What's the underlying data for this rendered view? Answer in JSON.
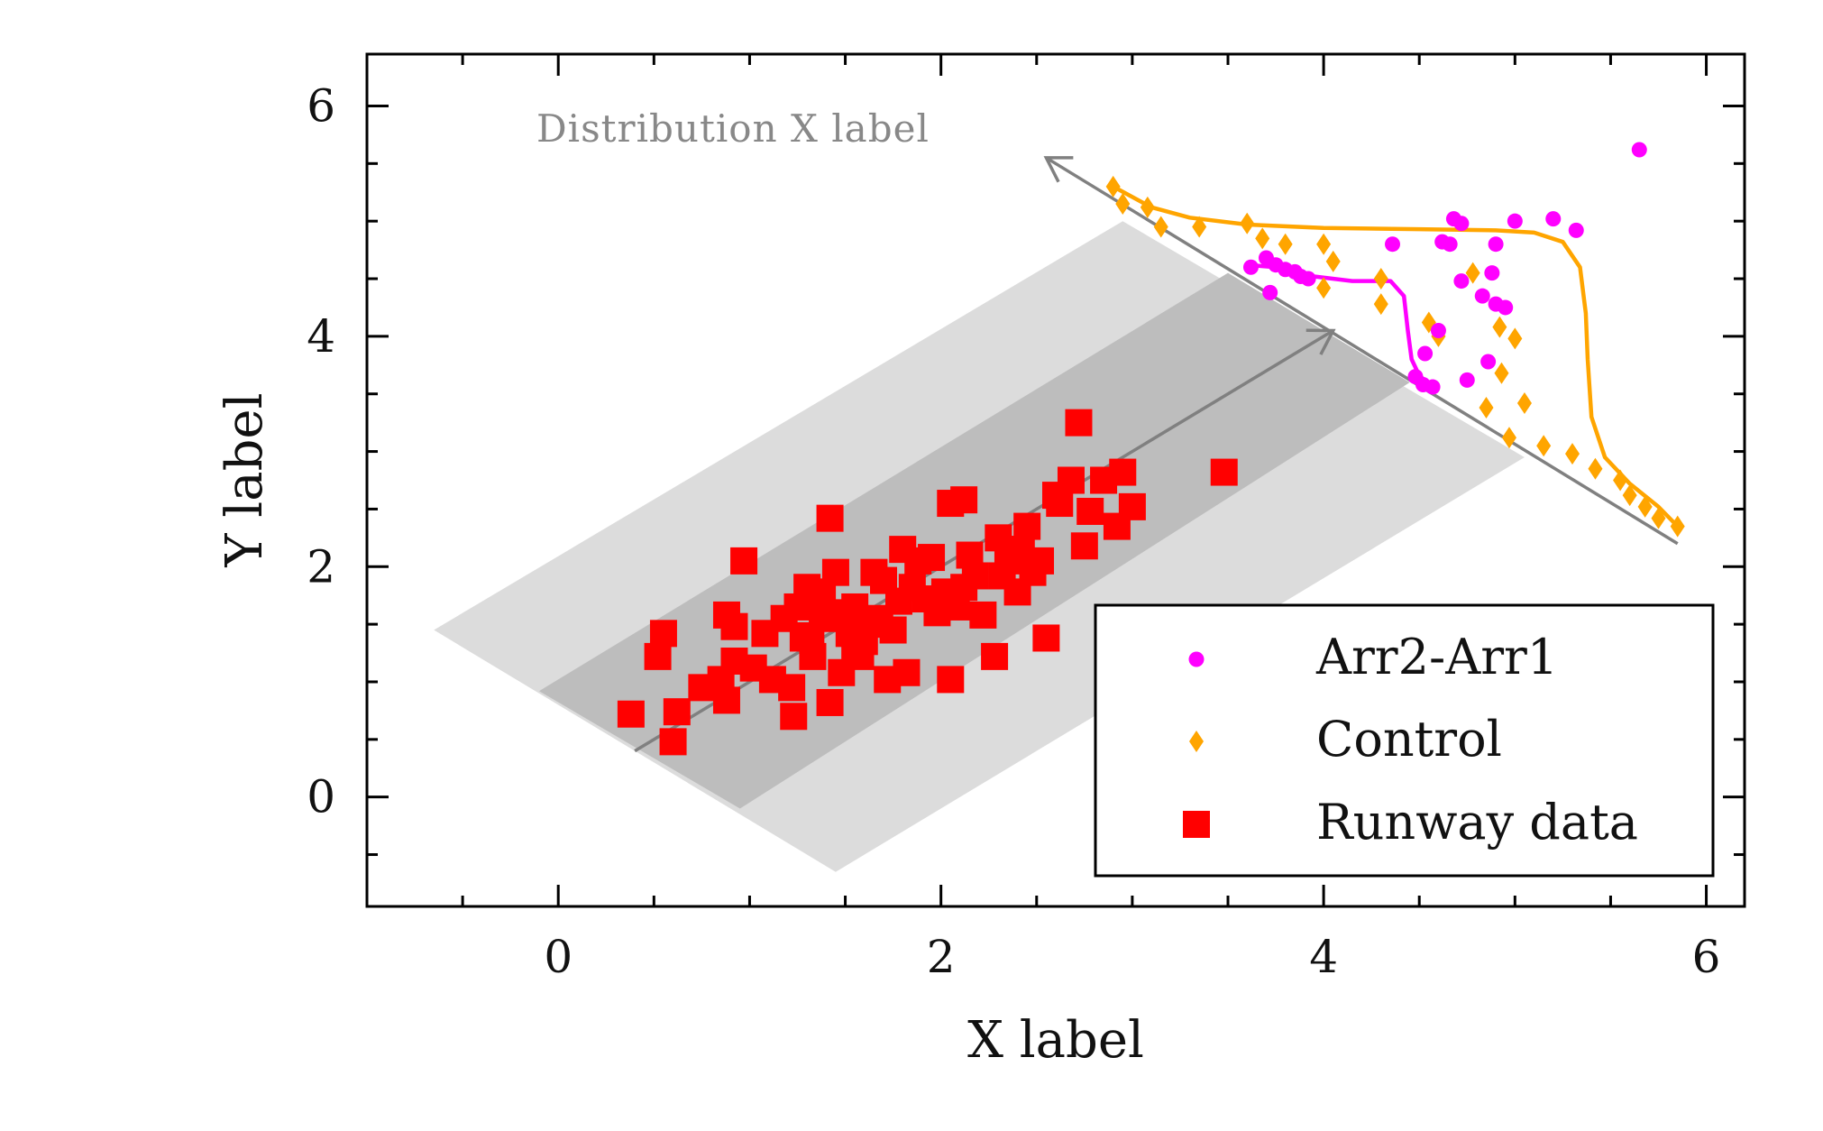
{
  "chart_data": {
    "type": "scatter",
    "title": "",
    "xlabel": "X label",
    "ylabel": "Y label",
    "xlim": [
      -1.0,
      6.2
    ],
    "ylim": [
      -0.95,
      6.45
    ],
    "xticks": [
      0,
      2,
      4,
      6
    ],
    "yticks": [
      0,
      2,
      4,
      6
    ],
    "grid": false,
    "legend_placement": "lower-right",
    "annotation": "Distribution X label",
    "colors": {
      "arr2_arr1": "#ff00ff",
      "control": "#ffa500",
      "runway": "#ff0000",
      "band_outer": "#dcdcdc",
      "band_inner": "#bdbdbd",
      "axis_arrow": "#808080"
    },
    "bands": {
      "outer": [
        [
          -0.65,
          1.45
        ],
        [
          2.95,
          5.0
        ],
        [
          5.05,
          2.95
        ],
        [
          1.45,
          -0.65
        ]
      ],
      "inner": [
        [
          -0.1,
          0.92
        ],
        [
          3.5,
          4.55
        ],
        [
          4.45,
          3.6
        ],
        [
          0.95,
          -0.1
        ]
      ]
    },
    "main_axis_arrow": {
      "from": [
        0.4,
        0.4
      ],
      "to": [
        4.05,
        4.05
      ]
    },
    "dist_axis_arrow": {
      "from": [
        5.85,
        2.2
      ],
      "to": [
        2.55,
        5.55
      ]
    },
    "series": [
      {
        "name": "Arr2-Arr1",
        "marker": "circle",
        "color": "#ff00ff",
        "points": [
          [
            5.65,
            5.62
          ],
          [
            4.68,
            5.02
          ],
          [
            4.72,
            4.98
          ],
          [
            5.0,
            5.0
          ],
          [
            5.2,
            5.02
          ],
          [
            5.32,
            4.92
          ],
          [
            4.36,
            4.8
          ],
          [
            4.62,
            4.82
          ],
          [
            4.66,
            4.8
          ],
          [
            4.9,
            4.8
          ],
          [
            3.62,
            4.6
          ],
          [
            3.7,
            4.68
          ],
          [
            3.75,
            4.62
          ],
          [
            3.8,
            4.58
          ],
          [
            3.85,
            4.56
          ],
          [
            3.88,
            4.52
          ],
          [
            3.92,
            4.5
          ],
          [
            3.72,
            4.38
          ],
          [
            4.88,
            4.55
          ],
          [
            4.72,
            4.48
          ],
          [
            4.83,
            4.35
          ],
          [
            4.9,
            4.28
          ],
          [
            4.95,
            4.25
          ],
          [
            4.6,
            4.05
          ],
          [
            4.53,
            3.85
          ],
          [
            4.86,
            3.78
          ],
          [
            4.48,
            3.65
          ],
          [
            4.52,
            3.58
          ],
          [
            4.57,
            3.56
          ],
          [
            4.75,
            3.62
          ]
        ]
      },
      {
        "name": "Control",
        "marker": "diamond",
        "color": "#ffa500",
        "points": [
          [
            2.9,
            5.3
          ],
          [
            2.95,
            5.15
          ],
          [
            3.08,
            5.12
          ],
          [
            3.15,
            4.95
          ],
          [
            3.35,
            4.95
          ],
          [
            3.6,
            4.98
          ],
          [
            3.8,
            4.8
          ],
          [
            4.0,
            4.8
          ],
          [
            3.68,
            4.85
          ],
          [
            4.05,
            4.65
          ],
          [
            4.0,
            4.42
          ],
          [
            4.3,
            4.5
          ],
          [
            4.3,
            4.28
          ],
          [
            4.55,
            4.12
          ],
          [
            4.6,
            4.0
          ],
          [
            4.78,
            4.55
          ],
          [
            4.92,
            4.08
          ],
          [
            5.0,
            3.98
          ],
          [
            4.93,
            3.68
          ],
          [
            4.85,
            3.38
          ],
          [
            5.05,
            3.42
          ],
          [
            4.97,
            3.12
          ],
          [
            5.15,
            3.05
          ],
          [
            5.3,
            2.98
          ],
          [
            5.42,
            2.85
          ],
          [
            5.55,
            2.75
          ],
          [
            5.6,
            2.62
          ],
          [
            5.68,
            2.52
          ],
          [
            5.75,
            2.42
          ],
          [
            5.85,
            2.35
          ]
        ]
      },
      {
        "name": "Runway data",
        "marker": "square",
        "color": "#ff0000",
        "points": [
          [
            0.38,
            0.72
          ],
          [
            0.6,
            0.48
          ],
          [
            0.62,
            0.74
          ],
          [
            0.75,
            0.95
          ],
          [
            0.85,
            1.02
          ],
          [
            0.88,
            0.84
          ],
          [
            0.92,
            1.18
          ],
          [
            1.02,
            1.12
          ],
          [
            1.12,
            1.02
          ],
          [
            1.22,
            0.95
          ],
          [
            1.23,
            0.7
          ],
          [
            1.28,
            1.38
          ],
          [
            1.33,
            1.22
          ],
          [
            1.38,
            1.55
          ],
          [
            1.42,
            0.82
          ],
          [
            1.48,
            1.08
          ],
          [
            1.52,
            1.42
          ],
          [
            1.55,
            1.65
          ],
          [
            1.58,
            1.22
          ],
          [
            1.62,
            1.5
          ],
          [
            1.65,
            1.95
          ],
          [
            1.72,
            1.02
          ],
          [
            1.75,
            1.45
          ],
          [
            1.78,
            1.7
          ],
          [
            1.82,
            1.08
          ],
          [
            1.88,
            2.05
          ],
          [
            1.92,
            1.72
          ],
          [
            1.98,
            1.6
          ],
          [
            2.05,
            1.02
          ],
          [
            2.08,
            1.65
          ],
          [
            2.12,
            1.82
          ],
          [
            2.15,
            2.1
          ],
          [
            2.22,
            1.58
          ],
          [
            2.28,
            1.22
          ],
          [
            2.32,
            1.92
          ],
          [
            2.35,
            2.15
          ],
          [
            2.4,
            1.78
          ],
          [
            2.45,
            2.35
          ],
          [
            2.48,
            1.95
          ],
          [
            2.52,
            2.05
          ],
          [
            2.55,
            1.38
          ],
          [
            2.62,
            2.55
          ],
          [
            2.68,
            2.75
          ],
          [
            2.72,
            3.25
          ],
          [
            2.78,
            2.48
          ],
          [
            2.85,
            2.75
          ],
          [
            2.92,
            2.35
          ],
          [
            2.95,
            2.82
          ],
          [
            3.0,
            2.52
          ],
          [
            3.48,
            2.82
          ],
          [
            0.55,
            1.42
          ],
          [
            0.52,
            1.22
          ],
          [
            0.88,
            1.58
          ],
          [
            0.92,
            1.48
          ],
          [
            0.97,
            2.05
          ],
          [
            1.08,
            1.42
          ],
          [
            1.18,
            1.55
          ],
          [
            1.3,
            1.82
          ],
          [
            1.45,
            1.95
          ],
          [
            1.42,
            2.42
          ],
          [
            1.6,
            1.35
          ],
          [
            1.7,
            1.88
          ],
          [
            1.8,
            2.15
          ],
          [
            1.95,
            2.08
          ],
          [
            2.05,
            2.55
          ],
          [
            2.12,
            2.58
          ],
          [
            2.3,
            2.25
          ],
          [
            2.42,
            2.15
          ],
          [
            2.6,
            2.62
          ],
          [
            2.75,
            2.18
          ],
          [
            1.25,
            1.65
          ],
          [
            1.32,
            1.4
          ],
          [
            1.38,
            1.78
          ],
          [
            1.48,
            1.6
          ],
          [
            1.55,
            1.3
          ],
          [
            1.68,
            1.55
          ],
          [
            1.85,
            1.82
          ],
          [
            2.02,
            1.78
          ],
          [
            2.18,
            1.92
          ],
          [
            2.38,
            2.05
          ]
        ]
      }
    ],
    "curves": [
      {
        "color": "#ffa500",
        "points": [
          [
            2.9,
            5.3
          ],
          [
            3.1,
            5.12
          ],
          [
            3.3,
            5.03
          ],
          [
            3.6,
            4.97
          ],
          [
            4.0,
            4.94
          ],
          [
            4.5,
            4.93
          ],
          [
            4.9,
            4.92
          ],
          [
            5.1,
            4.9
          ],
          [
            5.25,
            4.82
          ],
          [
            5.34,
            4.6
          ],
          [
            5.37,
            4.2
          ],
          [
            5.38,
            3.8
          ],
          [
            5.4,
            3.3
          ],
          [
            5.47,
            2.95
          ],
          [
            5.6,
            2.72
          ],
          [
            5.75,
            2.52
          ],
          [
            5.85,
            2.35
          ]
        ]
      },
      {
        "color": "#ff00ff",
        "points": [
          [
            3.6,
            4.62
          ],
          [
            3.75,
            4.6
          ],
          [
            3.95,
            4.52
          ],
          [
            4.15,
            4.48
          ],
          [
            4.35,
            4.48
          ],
          [
            4.42,
            4.35
          ],
          [
            4.44,
            4.05
          ],
          [
            4.46,
            3.8
          ],
          [
            4.5,
            3.66
          ],
          [
            4.57,
            3.56
          ]
        ]
      }
    ]
  }
}
